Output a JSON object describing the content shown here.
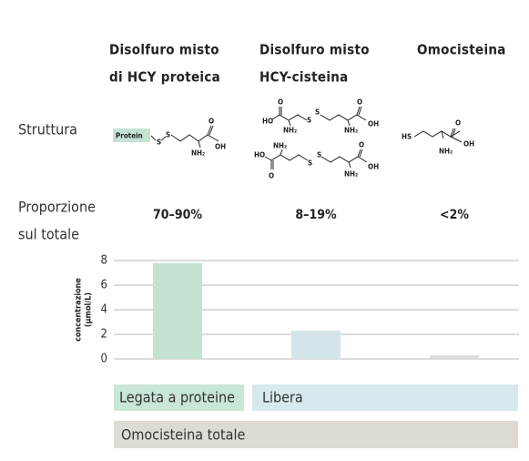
{
  "columns": [
    {
      "lines": [
        "Disolfuro misto",
        "di HCY proteica"
      ],
      "proportion": "70–90%",
      "structure": [
        "Protein",
        "S",
        "S",
        "O",
        "OH",
        "NH₂"
      ]
    },
    {
      "lines": [
        "Disolfuro misto",
        "HCY-cisteina"
      ],
      "proportion": "8–19%",
      "structure": [
        "O",
        "HO",
        "S",
        "S",
        "NH₂",
        "O",
        "OH",
        "NH₂",
        "NH₂",
        "HO",
        "O",
        "S",
        "S",
        "O",
        "OH",
        "NH₂"
      ]
    },
    {
      "lines": [
        "Omocisteina"
      ],
      "proportion": "<2%",
      "structure": [
        "HS",
        "O",
        "OH",
        "NH₂"
      ]
    }
  ],
  "rows": [
    {
      "lines": [
        "Struttura"
      ]
    },
    {
      "lines": [
        "Proporzione",
        "sul totale"
      ]
    }
  ],
  "groups": [
    "Legata a proteine",
    "Libera",
    "Omocisteina totale"
  ],
  "chart_data": {
    "type": "bar",
    "ylabel": [
      "concentrazione",
      "(μmol/L)"
    ],
    "categories": [
      null,
      null,
      null
    ],
    "values": [
      7.8,
      2.3,
      0.3
    ],
    "colors": [
      "#c5e3d3",
      "#d3e5e8",
      "#dcdcd8"
    ],
    "ylim": [
      0,
      8
    ],
    "yticks": [
      0,
      2,
      4,
      6,
      8
    ],
    "grid": true
  }
}
